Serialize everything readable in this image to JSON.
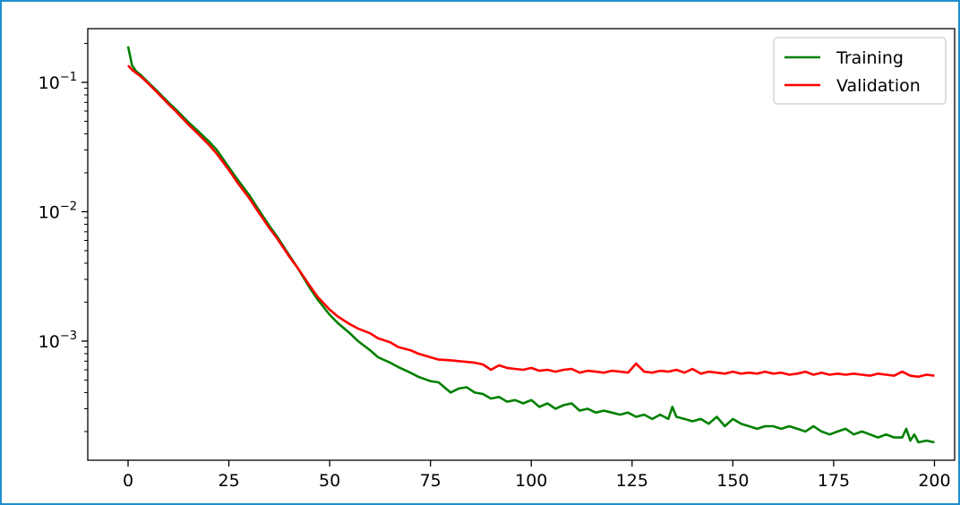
{
  "chart_data": {
    "type": "line",
    "title": "",
    "xlabel": "",
    "ylabel": "",
    "xlim": [
      -10,
      205
    ],
    "ylim": [
      0.00012,
      0.26
    ],
    "yscale": "log",
    "grid": false,
    "legend_position": "top-right",
    "x_ticks": [
      0,
      25,
      50,
      75,
      100,
      125,
      150,
      175,
      200
    ],
    "x_tick_labels": [
      "0",
      "25",
      "50",
      "75",
      "100",
      "125",
      "150",
      "175",
      "200"
    ],
    "y_ticks": [
      0.1,
      0.01,
      0.001
    ],
    "y_tick_labels": [
      {
        "base": "10",
        "exp": "−1"
      },
      {
        "base": "10",
        "exp": "−2"
      },
      {
        "base": "10",
        "exp": "−3"
      }
    ],
    "series": [
      {
        "name": "Training",
        "color": "#008000",
        "x": [
          0,
          1,
          2,
          3,
          5,
          7,
          10,
          12,
          15,
          17,
          20,
          22,
          25,
          27,
          30,
          32,
          35,
          37,
          40,
          42,
          45,
          47,
          50,
          52,
          55,
          57,
          60,
          62,
          65,
          67,
          70,
          72,
          75,
          77,
          80,
          82,
          84,
          86,
          88,
          90,
          92,
          94,
          96,
          98,
          100,
          102,
          104,
          106,
          108,
          110,
          112,
          114,
          116,
          118,
          120,
          122,
          124,
          126,
          128,
          130,
          132,
          134,
          135,
          136,
          138,
          140,
          142,
          144,
          146,
          148,
          150,
          152,
          154,
          156,
          158,
          160,
          162,
          164,
          166,
          168,
          170,
          172,
          174,
          176,
          178,
          180,
          182,
          184,
          186,
          188,
          190,
          192,
          193,
          194,
          195,
          196,
          198,
          200
        ],
        "y": [
          0.19,
          0.135,
          0.122,
          0.115,
          0.1,
          0.087,
          0.07,
          0.061,
          0.049,
          0.043,
          0.035,
          0.03,
          0.022,
          0.018,
          0.0135,
          0.0108,
          0.0078,
          0.0064,
          0.0046,
          0.0037,
          0.0026,
          0.0021,
          0.0016,
          0.00138,
          0.00115,
          0.001,
          0.00085,
          0.00075,
          0.00068,
          0.00063,
          0.00057,
          0.00053,
          0.00049,
          0.00048,
          0.0004,
          0.00043,
          0.00044,
          0.0004,
          0.00039,
          0.00036,
          0.00037,
          0.00034,
          0.00035,
          0.00033,
          0.00035,
          0.00031,
          0.00033,
          0.0003,
          0.00032,
          0.00033,
          0.00029,
          0.0003,
          0.00028,
          0.00029,
          0.00028,
          0.00027,
          0.00028,
          0.00026,
          0.00027,
          0.00025,
          0.00027,
          0.00025,
          0.00031,
          0.00026,
          0.00025,
          0.00024,
          0.00025,
          0.00023,
          0.00026,
          0.00022,
          0.00025,
          0.00023,
          0.00022,
          0.00021,
          0.00022,
          0.00022,
          0.00021,
          0.00022,
          0.00021,
          0.0002,
          0.00022,
          0.0002,
          0.00019,
          0.0002,
          0.00021,
          0.00019,
          0.0002,
          0.00019,
          0.00018,
          0.00019,
          0.00018,
          0.00018,
          0.00021,
          0.00017,
          0.00019,
          0.000165,
          0.00017,
          0.000165
        ]
      },
      {
        "name": "Validation",
        "color": "#ff0000",
        "x": [
          0,
          1,
          2,
          3,
          5,
          7,
          10,
          12,
          15,
          17,
          20,
          22,
          25,
          27,
          30,
          32,
          35,
          37,
          40,
          42,
          45,
          47,
          50,
          52,
          55,
          57,
          60,
          62,
          65,
          67,
          70,
          72,
          75,
          77,
          80,
          82,
          84,
          86,
          88,
          90,
          92,
          94,
          96,
          98,
          100,
          102,
          104,
          106,
          108,
          110,
          112,
          114,
          116,
          118,
          120,
          122,
          124,
          126,
          128,
          130,
          132,
          134,
          136,
          138,
          140,
          142,
          144,
          146,
          148,
          150,
          152,
          154,
          156,
          158,
          160,
          162,
          164,
          166,
          168,
          170,
          172,
          174,
          176,
          178,
          180,
          182,
          184,
          186,
          188,
          190,
          192,
          194,
          196,
          198,
          200
        ],
        "y": [
          0.135,
          0.125,
          0.118,
          0.112,
          0.098,
          0.085,
          0.068,
          0.059,
          0.047,
          0.041,
          0.033,
          0.028,
          0.021,
          0.017,
          0.0128,
          0.0103,
          0.0075,
          0.0062,
          0.0045,
          0.0037,
          0.0027,
          0.0022,
          0.00175,
          0.00155,
          0.00135,
          0.00125,
          0.00115,
          0.00105,
          0.00098,
          0.0009,
          0.00085,
          0.0008,
          0.00075,
          0.00072,
          0.00071,
          0.0007,
          0.00069,
          0.00068,
          0.00066,
          0.0006,
          0.00065,
          0.00062,
          0.00061,
          0.0006,
          0.00062,
          0.00059,
          0.0006,
          0.00058,
          0.0006,
          0.00061,
          0.00057,
          0.00059,
          0.00058,
          0.00057,
          0.00059,
          0.00058,
          0.00057,
          0.00067,
          0.00058,
          0.00057,
          0.00059,
          0.00058,
          0.0006,
          0.00057,
          0.00061,
          0.00056,
          0.00058,
          0.00057,
          0.00056,
          0.00058,
          0.00056,
          0.00057,
          0.00056,
          0.00058,
          0.00056,
          0.00057,
          0.00055,
          0.00056,
          0.00058,
          0.00055,
          0.00057,
          0.00055,
          0.00056,
          0.00055,
          0.00056,
          0.00055,
          0.00054,
          0.00056,
          0.00055,
          0.00054,
          0.00058,
          0.00054,
          0.00053,
          0.00055,
          0.00054
        ]
      }
    ]
  }
}
